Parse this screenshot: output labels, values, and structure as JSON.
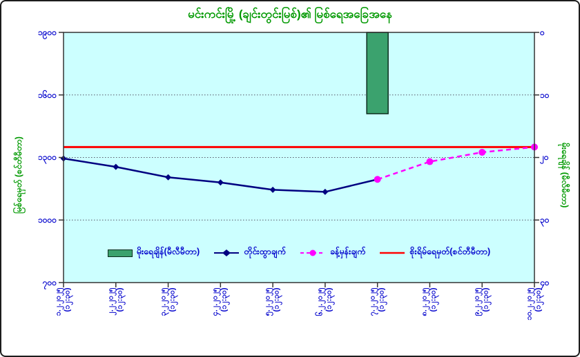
{
  "title": "မင်းကင်းမြို့ (ချင်းတွင်းမြစ်)၏ မြစ်ရေအခြေအနေ",
  "colors": {
    "title_green": "#009900",
    "label_blue": "#0000CC",
    "plot_bg": "#CCFFFF",
    "gridline": "#555566",
    "axis": "#333333",
    "observed_navy": "#000080",
    "forecast_magenta": "#FF00FF",
    "danger_red": "#FF0000",
    "rain_green": "#3BA26E",
    "rain_border": "#0B2B1B"
  },
  "chart_data": {
    "type": "composite-line-bar",
    "title": "မင်းကင်းမြို့ (ချင်းတွင်းမြစ်)၏ မြစ်ရေအခြေအနေ",
    "grid": "horizontal-dotted",
    "legend_position": "bottom-inside-plot",
    "x_labels": [
      {
        "date": "၁.၂.၂၀၂၅",
        "time": "(၁၂:၃၀)"
      },
      {
        "date": "၂.၂.၂၀၂၅",
        "time": "(၁၂:၃၀)"
      },
      {
        "date": "၃.၂.၂၀၂၅",
        "time": "(၁၂:၃၀)"
      },
      {
        "date": "၄.၂.၂၀၂၅",
        "time": "(၁၂:၃၀)"
      },
      {
        "date": "၅.၂.၂၀၂၅",
        "time": "(၁၂:၃၀)"
      },
      {
        "date": "၆.၂.၂၀၂၅",
        "time": "(၁၂:၃၀)"
      },
      {
        "date": "၇.၂.၂၀၂၅",
        "time": "(၁၂:၃၀)"
      },
      {
        "date": "၈.၂.၂၀၂၅",
        "time": "(၁၂:၃၀)"
      },
      {
        "date": "၉.၂.၂၀၂၅",
        "time": "(၁၂:၃၀)"
      },
      {
        "date": "၁၀.၂.၂၀၂၅",
        "time": "(၁၂:၃၀)"
      }
    ],
    "left_axis": {
      "title": "မြစ်ရေမှတ် (စင်တီမီတာ)",
      "unit": "cm",
      "tick_labels": [
        "၁၉၀၀",
        "၁၆၀၀",
        "၁၃၀၀",
        "၁၀၀၀",
        "၇၀၀"
      ],
      "tick_values": [
        1900,
        1600,
        1300,
        1000,
        700
      ],
      "min": 700,
      "max": 1900
    },
    "right_axis": {
      "title": "မိုးရေချိန် (မီလီမီတာ)",
      "unit": "mm",
      "tick_labels": [
        "၀",
        "၁၀",
        "၂၀",
        "၃၀",
        "၄၀"
      ],
      "tick_values": [
        0,
        10,
        20,
        30,
        40
      ],
      "min": 0,
      "max": 40,
      "zero_at_top": true
    },
    "series": [
      {
        "name": "မိုးရေချိန်(မီလီမီတာ)",
        "type": "bar",
        "axis": "right",
        "days": [
          7
        ],
        "values": [
          13
        ],
        "color": "#3BA26E",
        "border_color": "#0B2B1B"
      },
      {
        "name": "တိုင်းထွာချက်",
        "type": "line",
        "axis": "left",
        "marker": "diamond",
        "days": [
          1,
          2,
          3,
          4,
          5,
          6,
          7
        ],
        "values": [
          1295,
          1255,
          1205,
          1180,
          1145,
          1135,
          1195
        ],
        "color": "#000080"
      },
      {
        "name": "ခန့်မှန်းချက်",
        "type": "dashed-line",
        "axis": "left",
        "marker": "circle",
        "days": [
          7,
          8,
          9,
          10
        ],
        "values": [
          1195,
          1280,
          1325,
          1350
        ],
        "color": "#FF00FF"
      },
      {
        "name": "စိုးရိမ်ရေမှတ်(စင်တီမီတာ)",
        "type": "hline",
        "axis": "left",
        "value": 1350,
        "color": "#FF0000"
      }
    ]
  }
}
